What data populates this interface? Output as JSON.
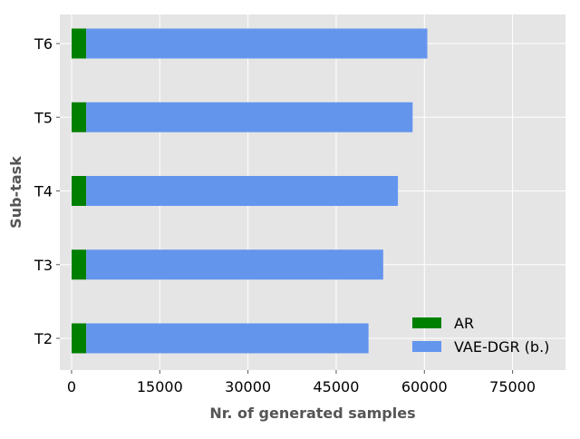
{
  "chart_data": {
    "type": "bar",
    "orientation": "horizontal",
    "stacked": true,
    "categories": [
      "T2",
      "T3",
      "T4",
      "T5",
      "T6"
    ],
    "series": [
      {
        "name": "AR",
        "color": "#008000",
        "values": [
          2500,
          2500,
          2500,
          2500,
          2500
        ]
      },
      {
        "name": "VAE-DGR (b.)",
        "color": "#6495ED",
        "values": [
          48000,
          50500,
          53000,
          55500,
          58000
        ]
      }
    ],
    "xlabel": "Nr. of generated samples",
    "ylabel": "Sub-task",
    "xlim": [
      -2000,
      84000
    ],
    "xticks": [
      0,
      15000,
      30000,
      45000,
      60000,
      75000
    ],
    "xtick_labels": [
      "0",
      "15000",
      "30000",
      "45000",
      "60000",
      "75000"
    ],
    "grid": true,
    "background": "#E5E5E5",
    "legend_position": "bottom-right"
  }
}
